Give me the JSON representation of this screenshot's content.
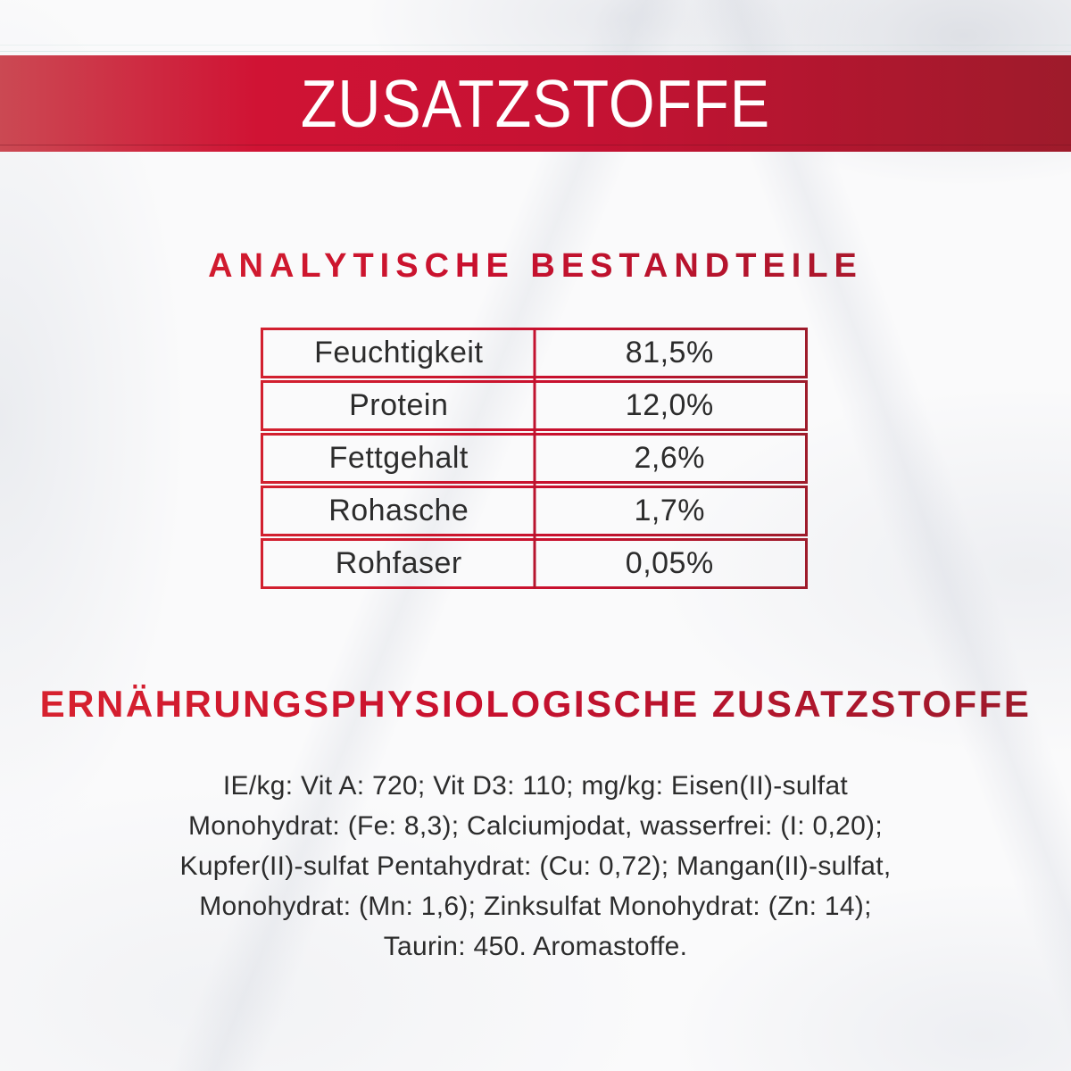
{
  "banner": {
    "title": "ZUSATZSTOFFE"
  },
  "analytical": {
    "heading": "ANALYTISCHE BESTANDTEILE",
    "table": {
      "rows": [
        {
          "label": "Feuchtigkeit",
          "value": "81,5%"
        },
        {
          "label": "Protein",
          "value": "12,0%"
        },
        {
          "label": "Fettgehalt",
          "value": "2,6%"
        },
        {
          "label": "Rohasche",
          "value": "1,7%"
        },
        {
          "label": "Rohfaser",
          "value": "0,05%"
        }
      ]
    }
  },
  "additives": {
    "heading": "ERNÄHRUNGSPHYSIOLOGISCHE ZUSATZSTOFFE",
    "lines": [
      "IE/kg: Vit A: 720; Vit D3: 110; mg/kg: Eisen(II)-sulfat",
      "Monohydrat: (Fe: 8,3); Calciumjodat, wasserfrei: (I: 0,20);",
      "Kupfer(II)-sulfat Pentahydrat: (Cu: 0,72); Mangan(II)-sulfat,",
      "Monohydrat: (Mn: 1,6); Zinksulfat Monohydrat: (Zn: 14);",
      "Taurin: 450. Aromastoffe."
    ]
  },
  "colors": {
    "banner_left": "#cb4953",
    "banner_mid": "#d01334",
    "banner_right": "#9e1b2b",
    "accent": "#d8232f",
    "accent_dark": "#9a1b2b",
    "border_red": "#c8102e",
    "text": "#2c2c2c",
    "banner_text": "#ffffff"
  }
}
